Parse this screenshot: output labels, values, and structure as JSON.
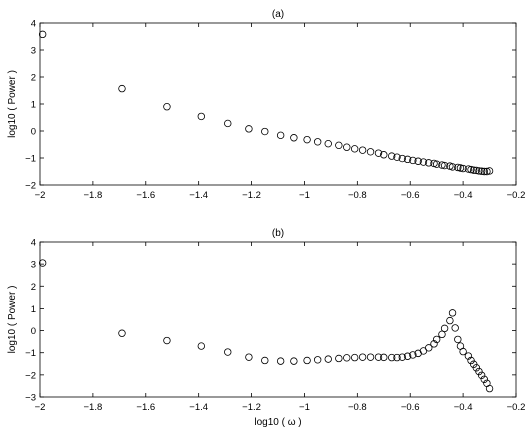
{
  "chart_data": [
    {
      "type": "scatter",
      "title": "(a)",
      "xlabel": "",
      "ylabel": "log10 ( Power )",
      "xlim": [
        -2,
        -0.2
      ],
      "ylim": [
        -2,
        4
      ],
      "xticks": [
        -2,
        -1.8,
        -1.6,
        -1.4,
        -1.2,
        -1,
        -0.8,
        -0.6,
        -0.4,
        -0.2
      ],
      "xtick_labels": [
        "−2",
        "−1.8",
        "−1.6",
        "−1.4",
        "−1.2",
        "−1",
        "−0.8",
        "−0.6",
        "−0.4",
        "−0.2"
      ],
      "yticks": [
        -2,
        -1,
        0,
        1,
        2,
        3,
        4
      ],
      "ytick_labels": [
        "−2",
        "−1",
        "0",
        "1",
        "2",
        "3",
        "4"
      ],
      "marker": "open-circle",
      "color": "#000000",
      "points": [
        [
          -1.99,
          3.58
        ],
        [
          -1.69,
          1.57
        ],
        [
          -1.52,
          0.9
        ],
        [
          -1.39,
          0.54
        ],
        [
          -1.29,
          0.28
        ],
        [
          -1.21,
          0.08
        ],
        [
          -1.15,
          -0.02
        ],
        [
          -1.09,
          -0.16
        ],
        [
          -1.04,
          -0.25
        ],
        [
          -0.99,
          -0.32
        ],
        [
          -0.95,
          -0.4
        ],
        [
          -0.91,
          -0.47
        ],
        [
          -0.87,
          -0.53
        ],
        [
          -0.84,
          -0.6
        ],
        [
          -0.81,
          -0.66
        ],
        [
          -0.78,
          -0.71
        ],
        [
          -0.75,
          -0.77
        ],
        [
          -0.72,
          -0.82
        ],
        [
          -0.7,
          -0.88
        ],
        [
          -0.67,
          -0.93
        ],
        [
          -0.65,
          -0.97
        ],
        [
          -0.63,
          -1.02
        ],
        [
          -0.61,
          -1.05
        ],
        [
          -0.59,
          -1.09
        ],
        [
          -0.57,
          -1.12
        ],
        [
          -0.55,
          -1.15
        ],
        [
          -0.53,
          -1.18
        ],
        [
          -0.51,
          -1.2
        ],
        [
          -0.5,
          -1.23
        ],
        [
          -0.48,
          -1.26
        ],
        [
          -0.47,
          -1.28
        ],
        [
          -0.45,
          -1.3
        ],
        [
          -0.44,
          -1.33
        ],
        [
          -0.42,
          -1.35
        ],
        [
          -0.41,
          -1.37
        ],
        [
          -0.4,
          -1.39
        ],
        [
          -0.38,
          -1.41
        ],
        [
          -0.37,
          -1.43
        ],
        [
          -0.36,
          -1.45
        ],
        [
          -0.35,
          -1.46
        ],
        [
          -0.34,
          -1.48
        ],
        [
          -0.33,
          -1.49
        ],
        [
          -0.32,
          -1.5
        ],
        [
          -0.31,
          -1.5
        ],
        [
          -0.3,
          -1.48
        ]
      ]
    },
    {
      "type": "scatter",
      "title": "(b)",
      "xlabel": "log10 ( ω )",
      "ylabel": "log10 ( Power )",
      "xlim": [
        -2,
        -0.2
      ],
      "ylim": [
        -3,
        4
      ],
      "xticks": [
        -2,
        -1.8,
        -1.6,
        -1.4,
        -1.2,
        -1,
        -0.8,
        -0.6,
        -0.4,
        -0.2
      ],
      "xtick_labels": [
        "−2",
        "−1.8",
        "−1.6",
        "−1.4",
        "−1.2",
        "−1",
        "−0.8",
        "−0.6",
        "−0.4",
        "−0.2"
      ],
      "yticks": [
        -3,
        -2,
        -1,
        0,
        1,
        2,
        3,
        4
      ],
      "ytick_labels": [
        "−3",
        "−2",
        "−1",
        "0",
        "1",
        "2",
        "3",
        "4"
      ],
      "marker": "open-circle",
      "color": "#000000",
      "points": [
        [
          -1.99,
          3.05
        ],
        [
          -1.69,
          -0.12
        ],
        [
          -1.52,
          -0.45
        ],
        [
          -1.39,
          -0.7
        ],
        [
          -1.29,
          -0.97
        ],
        [
          -1.21,
          -1.2
        ],
        [
          -1.15,
          -1.35
        ],
        [
          -1.09,
          -1.38
        ],
        [
          -1.04,
          -1.38
        ],
        [
          -0.99,
          -1.35
        ],
        [
          -0.95,
          -1.32
        ],
        [
          -0.91,
          -1.29
        ],
        [
          -0.87,
          -1.26
        ],
        [
          -0.84,
          -1.23
        ],
        [
          -0.81,
          -1.22
        ],
        [
          -0.78,
          -1.2
        ],
        [
          -0.75,
          -1.2
        ],
        [
          -0.72,
          -1.2
        ],
        [
          -0.7,
          -1.21
        ],
        [
          -0.67,
          -1.22
        ],
        [
          -0.65,
          -1.22
        ],
        [
          -0.63,
          -1.2
        ],
        [
          -0.61,
          -1.16
        ],
        [
          -0.59,
          -1.1
        ],
        [
          -0.57,
          -1.03
        ],
        [
          -0.55,
          -0.92
        ],
        [
          -0.53,
          -0.78
        ],
        [
          -0.51,
          -0.6
        ],
        [
          -0.5,
          -0.4
        ],
        [
          -0.48,
          -0.17
        ],
        [
          -0.47,
          0.1
        ],
        [
          -0.45,
          0.45
        ],
        [
          -0.44,
          0.8
        ],
        [
          -0.43,
          0.12
        ],
        [
          -0.42,
          -0.4
        ],
        [
          -0.41,
          -0.7
        ],
        [
          -0.4,
          -0.95
        ],
        [
          -0.38,
          -1.15
        ],
        [
          -0.37,
          -1.35
        ],
        [
          -0.36,
          -1.52
        ],
        [
          -0.35,
          -1.68
        ],
        [
          -0.34,
          -1.85
        ],
        [
          -0.33,
          -2.02
        ],
        [
          -0.32,
          -2.2
        ],
        [
          -0.31,
          -2.38
        ],
        [
          -0.3,
          -2.62
        ]
      ]
    }
  ]
}
